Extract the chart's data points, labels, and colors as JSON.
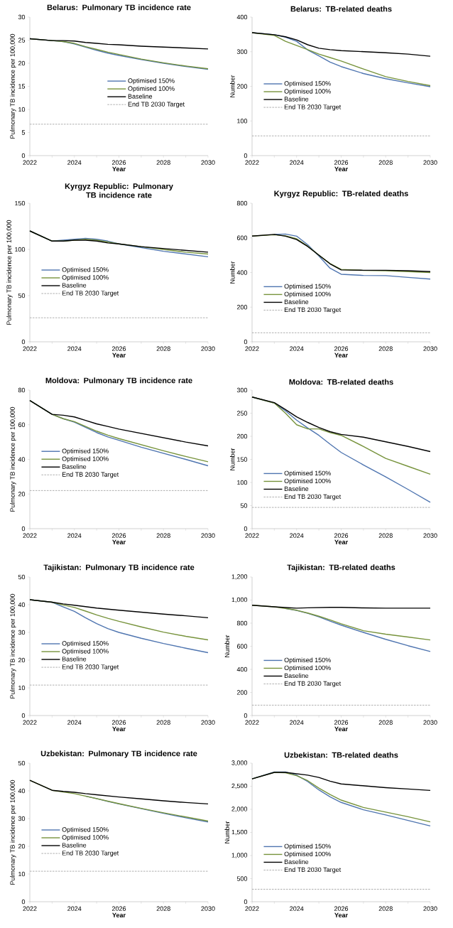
{
  "chart_data": [
    {
      "type": "line",
      "title": "Belarus: Pulmonary TB incidence rate",
      "xlabel": "Year",
      "ylabel": "Pulmonary TB incidence per 100,000",
      "x": [
        2022,
        2023,
        2023.5,
        2024,
        2024.5,
        2025,
        2025.5,
        2026,
        2027,
        2028,
        2029,
        2030
      ],
      "xlim": [
        2022,
        2030
      ],
      "xticks": [
        2022,
        2024,
        2026,
        2028,
        2030
      ],
      "ylim": [
        0,
        30
      ],
      "yticks": [
        0,
        5,
        10,
        15,
        20,
        25,
        30
      ],
      "legend": "center right",
      "series": [
        {
          "name": "Optimised 150%",
          "color": "#4f75b0",
          "line_style": "solid",
          "values": [
            25.3,
            24.9,
            24.7,
            24.2,
            23.5,
            22.8,
            22.2,
            21.7,
            20.8,
            20.0,
            19.3,
            18.7
          ]
        },
        {
          "name": "Optimised 100%",
          "color": "#77933c",
          "line_style": "solid",
          "values": [
            25.3,
            24.9,
            24.7,
            24.3,
            23.6,
            23.0,
            22.4,
            21.9,
            20.9,
            20.1,
            19.4,
            18.8
          ]
        },
        {
          "name": "Baseline",
          "color": "#000000",
          "line_style": "solid",
          "values": [
            25.3,
            24.9,
            24.9,
            24.8,
            24.5,
            24.3,
            24.1,
            24.0,
            23.7,
            23.5,
            23.3,
            23.1
          ]
        },
        {
          "name": "End TB 2030 Target",
          "color": "#a6a6a6",
          "line_style": "dashed",
          "values": [
            6.8,
            6.8,
            6.8,
            6.8,
            6.8,
            6.8,
            6.8,
            6.8,
            6.8,
            6.8,
            6.8,
            6.8
          ]
        }
      ]
    },
    {
      "type": "line",
      "title": "Belarus: TB-related deaths",
      "xlabel": "Year",
      "ylabel": "Number",
      "x": [
        2022,
        2023,
        2023.5,
        2024,
        2024.5,
        2025,
        2025.5,
        2026,
        2027,
        2028,
        2029,
        2030
      ],
      "xlim": [
        2022,
        2030
      ],
      "xticks": [
        2022,
        2024,
        2026,
        2028,
        2030
      ],
      "ylim": [
        0,
        400
      ],
      "yticks": [
        0,
        100,
        200,
        300,
        400
      ],
      "legend": "left",
      "series": [
        {
          "name": "Optimised 150%",
          "color": "#4f75b0",
          "line_style": "solid",
          "values": [
            355,
            349,
            342,
            330,
            305,
            288,
            270,
            257,
            237,
            222,
            210,
            199
          ]
        },
        {
          "name": "Optimised 100%",
          "color": "#77933c",
          "line_style": "solid",
          "values": [
            355,
            347,
            330,
            318,
            306,
            293,
            283,
            273,
            250,
            228,
            214,
            202
          ]
        },
        {
          "name": "Baseline",
          "color": "#000000",
          "line_style": "solid",
          "values": [
            355,
            349,
            343,
            334,
            320,
            310,
            306,
            303,
            300,
            297,
            293,
            287
          ]
        },
        {
          "name": "End TB 2030 Target",
          "color": "#a6a6a6",
          "line_style": "dashed",
          "values": [
            57,
            57,
            57,
            57,
            57,
            57,
            57,
            57,
            57,
            57,
            57,
            57
          ]
        }
      ]
    },
    {
      "type": "line",
      "title": "Kyrgyz Republic: Pulmonary TB incidence rate",
      "xlabel": "Year",
      "ylabel": "Pulmonary TB incidence per 100,000",
      "x": [
        2022,
        2023,
        2023.5,
        2024,
        2024.5,
        2025,
        2025.5,
        2026,
        2027,
        2028,
        2029,
        2030
      ],
      "xlim": [
        2022,
        2030
      ],
      "xticks": [
        2022,
        2024,
        2026,
        2028,
        2030
      ],
      "ylim": [
        0,
        150
      ],
      "yticks": [
        0,
        50,
        100,
        150
      ],
      "legend": "left",
      "series": [
        {
          "name": "Optimised 150%",
          "color": "#4f75b0",
          "line_style": "solid",
          "values": [
            120,
            109,
            110,
            111,
            112,
            111,
            109,
            106,
            102,
            98,
            95,
            92
          ]
        },
        {
          "name": "Optimised 100%",
          "color": "#77933c",
          "line_style": "solid",
          "values": [
            120,
            109,
            109,
            110,
            111,
            110,
            108,
            106,
            103,
            100,
            97,
            95
          ]
        },
        {
          "name": "Baseline",
          "color": "#000000",
          "line_style": "solid",
          "values": [
            120,
            109,
            109,
            110,
            110,
            109,
            107,
            106,
            103,
            101,
            99,
            97
          ]
        },
        {
          "name": "End TB 2030 Target",
          "color": "#a6a6a6",
          "line_style": "dashed",
          "values": [
            26,
            26,
            26,
            26,
            26,
            26,
            26,
            26,
            26,
            26,
            26,
            26
          ]
        }
      ]
    },
    {
      "type": "line",
      "title": "Kyrgyz Republic: TB-related deaths",
      "xlabel": "Year",
      "ylabel": "Number",
      "x": [
        2022,
        2023,
        2023.5,
        2024,
        2024.5,
        2025,
        2025.5,
        2026,
        2027,
        2028,
        2029,
        2030
      ],
      "xlim": [
        2022,
        2030
      ],
      "xticks": [
        2022,
        2024,
        2026,
        2028,
        2030
      ],
      "ylim": [
        0,
        800
      ],
      "yticks": [
        0,
        200,
        400,
        600,
        800
      ],
      "legend": "bottom left",
      "series": [
        {
          "name": "Optimised 150%",
          "color": "#4f75b0",
          "line_style": "solid",
          "values": [
            null,
            620,
            622,
            610,
            560,
            495,
            425,
            390,
            383,
            382,
            372,
            362
          ]
        },
        {
          "name": "Optimised 100%",
          "color": "#77933c",
          "line_style": "solid",
          "values": [
            610,
            618,
            612,
            595,
            552,
            500,
            452,
            418,
            412,
            410,
            405,
            400
          ]
        },
        {
          "name": "Baseline",
          "color": "#000000",
          "line_style": "solid",
          "values": [
            610,
            620,
            610,
            590,
            550,
            500,
            450,
            415,
            413,
            413,
            410,
            405
          ]
        },
        {
          "name": "End TB 2030 Target",
          "color": "#a6a6a6",
          "line_style": "dashed",
          "values": [
            52,
            52,
            52,
            52,
            52,
            52,
            52,
            52,
            52,
            52,
            52,
            52
          ]
        }
      ]
    },
    {
      "type": "line",
      "title": "Moldova: Pulmonary TB incidence rate",
      "xlabel": "Year",
      "ylabel": "Pulmonary TB incidence per 100,000",
      "x": [
        2022,
        2023,
        2023.5,
        2024,
        2024.5,
        2025,
        2025.5,
        2026,
        2027,
        2028,
        2029,
        2030
      ],
      "xlim": [
        2022,
        2030
      ],
      "xticks": [
        2022,
        2024,
        2026,
        2028,
        2030
      ],
      "ylim": [
        0,
        80
      ],
      "yticks": [
        0,
        20,
        40,
        60,
        80
      ],
      "legend": "center left",
      "series": [
        {
          "name": "Optimised 150%",
          "color": "#4f75b0",
          "line_style": "solid",
          "values": [
            74,
            66,
            63.5,
            61.5,
            58.5,
            55.5,
            53,
            51,
            47,
            43.5,
            40,
            36.3
          ]
        },
        {
          "name": "Optimised 100%",
          "color": "#77933c",
          "line_style": "solid",
          "values": [
            74,
            66,
            63.5,
            61.8,
            59,
            56.3,
            54,
            52,
            48.5,
            45,
            41.7,
            38.6
          ]
        },
        {
          "name": "Baseline",
          "color": "#000000",
          "line_style": "solid",
          "values": [
            74,
            66,
            65.5,
            64.5,
            62.5,
            60.5,
            59,
            57.5,
            55,
            52.5,
            50,
            47.8
          ]
        },
        {
          "name": "End TB 2030 Target",
          "color": "#a6a6a6",
          "line_style": "dashed",
          "values": [
            22,
            22,
            22,
            22,
            22,
            22,
            22,
            22,
            22,
            22,
            22,
            22
          ]
        }
      ]
    },
    {
      "type": "line",
      "title": "Moldova: TB-related deaths",
      "xlabel": "Year",
      "ylabel": "Number",
      "x": [
        2022,
        2023,
        2023.5,
        2024,
        2024.5,
        2025,
        2025.5,
        2026,
        2027,
        2028,
        2029,
        2030
      ],
      "xlim": [
        2022,
        2030
      ],
      "xticks": [
        2022,
        2024,
        2026,
        2028,
        2030
      ],
      "ylim": [
        0,
        300
      ],
      "yticks": [
        0,
        50,
        100,
        150,
        200,
        250,
        300
      ],
      "legend": "bottom left",
      "series": [
        {
          "name": "Optimised 150%",
          "color": "#4f75b0",
          "line_style": "solid",
          "values": [
            285,
            272,
            255,
            235,
            218,
            202,
            183,
            165,
            138,
            112,
            85,
            57
          ]
        },
        {
          "name": "Optimised 100%",
          "color": "#77933c",
          "line_style": "solid",
          "values": [
            285,
            272,
            250,
            225,
            216,
            216,
            208,
            202,
            178,
            152,
            135,
            118
          ]
        },
        {
          "name": "Baseline",
          "color": "#000000",
          "line_style": "solid",
          "values": [
            285,
            273,
            258,
            242,
            230,
            219,
            210,
            204,
            198,
            188,
            178,
            167
          ]
        },
        {
          "name": "End TB 2030 Target",
          "color": "#a6a6a6",
          "line_style": "dashed",
          "values": [
            46,
            46,
            46,
            46,
            46,
            46,
            46,
            46,
            46,
            46,
            46,
            46
          ]
        }
      ]
    },
    {
      "type": "line",
      "title": "Tajikistan: Pulmonary TB incidence rate",
      "xlabel": "Year",
      "ylabel": "Pulmonary TB incidence per 100,000",
      "x": [
        2022,
        2023,
        2023.5,
        2024,
        2024.5,
        2025,
        2025.5,
        2026,
        2027,
        2028,
        2029,
        2030
      ],
      "xlim": [
        2022,
        2030
      ],
      "xticks": [
        2022,
        2024,
        2026,
        2028,
        2030
      ],
      "ylim": [
        0,
        50
      ],
      "yticks": [
        0,
        10,
        20,
        30,
        40,
        50
      ],
      "legend": "left",
      "series": [
        {
          "name": "Optimised 150%",
          "color": "#4f75b0",
          "line_style": "solid",
          "values": [
            41.8,
            40.9,
            39.2,
            37.6,
            35.3,
            33.2,
            31.4,
            30.0,
            27.9,
            26.0,
            24.3,
            22.7
          ]
        },
        {
          "name": "Optimised 100%",
          "color": "#77933c",
          "line_style": "solid",
          "values": [
            41.8,
            40.9,
            39.9,
            39.0,
            37.7,
            36.3,
            35.1,
            34.0,
            32.0,
            30.1,
            28.6,
            27.3
          ]
        },
        {
          "name": "Baseline",
          "color": "#000000",
          "line_style": "solid",
          "values": [
            41.8,
            40.9,
            40.3,
            39.8,
            39.3,
            38.8,
            38.4,
            38.0,
            37.3,
            36.6,
            36.0,
            35.3
          ]
        },
        {
          "name": "End TB 2030 Target",
          "color": "#a6a6a6",
          "line_style": "dashed",
          "values": [
            11,
            11,
            11,
            11,
            11,
            11,
            11,
            11,
            11,
            11,
            11,
            11
          ]
        }
      ]
    },
    {
      "type": "line",
      "title": "Tajikistan: TB-related deaths",
      "xlabel": "Year",
      "ylabel": "Number",
      "x": [
        2022,
        2023,
        2023.5,
        2024,
        2024.5,
        2025,
        2025.5,
        2026,
        2027,
        2028,
        2029,
        2030
      ],
      "xlim": [
        2022,
        2030
      ],
      "xticks": [
        2022,
        2024,
        2026,
        2028,
        2030
      ],
      "ylim": [
        0,
        1200
      ],
      "yticks": [
        0,
        200,
        400,
        600,
        800,
        {
          "value": 1000,
          "label": "1,000"
        },
        {
          "value": 1200,
          "label": "1,200"
        }
      ],
      "legend": "bottom left",
      "series": [
        {
          "name": "Optimised 150%",
          "color": "#4f75b0",
          "line_style": "solid",
          "values": [
            null,
            null,
            928,
            910,
            885,
            855,
            818,
            783,
            720,
            660,
            605,
            555
          ]
        },
        {
          "name": "Optimised 100%",
          "color": "#77933c",
          "line_style": "solid",
          "values": [
            955,
            942,
            928,
            912,
            888,
            860,
            828,
            795,
            735,
            705,
            680,
            655
          ]
        },
        {
          "name": "Baseline",
          "color": "#000000",
          "line_style": "solid",
          "values": [
            955,
            942,
            935,
            930,
            933,
            935,
            937,
            937,
            932,
            930,
            930,
            930
          ]
        },
        {
          "name": "End TB 2030 Target",
          "color": "#a6a6a6",
          "line_style": "dashed",
          "values": [
            90,
            90,
            90,
            90,
            90,
            90,
            90,
            90,
            90,
            90,
            90,
            90
          ]
        }
      ]
    },
    {
      "type": "line",
      "title": "Uzbekistan: Pulmonary TB incidence rate",
      "xlabel": "Year",
      "ylabel": "Pulmonary TB incidence per 100,000",
      "x": [
        2022,
        2023,
        2023.5,
        2024,
        2024.5,
        2025,
        2025.5,
        2026,
        2027,
        2028,
        2029,
        2030
      ],
      "xlim": [
        2022,
        2030
      ],
      "xticks": [
        2022,
        2024,
        2026,
        2028,
        2030
      ],
      "ylim": [
        0,
        50
      ],
      "yticks": [
        0,
        10,
        20,
        30,
        40,
        50
      ],
      "legend": "left",
      "series": [
        {
          "name": "Optimised 150%",
          "color": "#4f75b0",
          "line_style": "solid",
          "values": [
            null,
            null,
            null,
            null,
            38.1,
            37.2,
            36.2,
            35.3,
            33.6,
            31.9,
            30.3,
            28.8
          ]
        },
        {
          "name": "Optimised 100%",
          "color": "#77933c",
          "line_style": "solid",
          "values": [
            43.8,
            40.2,
            39.6,
            39.0,
            38.1,
            37.2,
            36.3,
            35.4,
            33.7,
            32.1,
            30.6,
            29.1
          ]
        },
        {
          "name": "Baseline",
          "color": "#000000",
          "line_style": "solid",
          "values": [
            43.8,
            40.2,
            39.8,
            39.5,
            39.0,
            38.6,
            38.2,
            37.8,
            37.1,
            36.4,
            35.8,
            35.3
          ]
        },
        {
          "name": "End TB 2030 Target",
          "color": "#a6a6a6",
          "line_style": "dashed",
          "values": [
            11,
            11,
            11,
            11,
            11,
            11,
            11,
            11,
            11,
            11,
            11,
            11
          ]
        }
      ]
    },
    {
      "type": "line",
      "title": "Uzbekistan: TB-related deaths",
      "xlabel": "Year",
      "ylabel": "Number",
      "x": [
        2022,
        2023,
        2023.5,
        2024,
        2024.5,
        2025,
        2025.5,
        2026,
        2027,
        2028,
        2029,
        2030
      ],
      "xlim": [
        2022,
        2030
      ],
      "xticks": [
        2022,
        2024,
        2026,
        2028,
        2030
      ],
      "ylim": [
        0,
        3000
      ],
      "yticks": [
        0,
        500,
        {
          "value": 1000,
          "label": "1,000"
        },
        {
          "value": 1500,
          "label": "1,500"
        },
        {
          "value": 2000,
          "label": "2,000"
        },
        {
          "value": 2500,
          "label": "2,500"
        },
        {
          "value": 3000,
          "label": "3,000"
        }
      ],
      "legend": "bottom left",
      "series": [
        {
          "name": "Optimised 150%",
          "color": "#4f75b0",
          "line_style": "solid",
          "values": [
            2660,
            2810,
            2810,
            2740,
            2600,
            2420,
            2270,
            2150,
            1990,
            1880,
            1760,
            1640
          ]
        },
        {
          "name": "Optimised 100%",
          "color": "#77933c",
          "line_style": "solid",
          "values": [
            2660,
            2800,
            2790,
            2730,
            2620,
            2460,
            2320,
            2200,
            2040,
            1940,
            1840,
            1730
          ]
        },
        {
          "name": "Baseline",
          "color": "#000000",
          "line_style": "solid",
          "values": [
            2660,
            2800,
            2800,
            2770,
            2740,
            2690,
            2610,
            2550,
            2510,
            2470,
            2440,
            2410
          ]
        },
        {
          "name": "End TB 2030 Target",
          "color": "#a6a6a6",
          "line_style": "dashed",
          "values": [
            270,
            270,
            270,
            270,
            270,
            270,
            270,
            270,
            270,
            270,
            270,
            270
          ]
        }
      ]
    }
  ]
}
